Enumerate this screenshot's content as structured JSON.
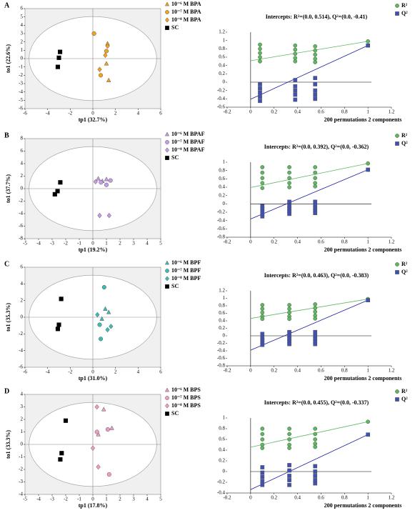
{
  "chart_data": [
    {
      "type": "scatter",
      "panel": "A",
      "xlabel": "tp1 (32.7%)",
      "ylabel": "to1 (22.6%)",
      "xlim": [
        -6,
        6
      ],
      "xticks": [
        -6,
        -4,
        -2,
        0,
        2,
        4,
        6
      ],
      "ylim": [
        -6,
        6
      ],
      "yticks": [
        -6,
        -5,
        -4,
        -3,
        -2,
        -1,
        0,
        1,
        2,
        3,
        4,
        5,
        6
      ],
      "ellipse": true,
      "legend": "right",
      "series": [
        {
          "name": "10⁻⁶ M BPA",
          "color": "#f5a21b",
          "marker": "triangle",
          "x": [
            1.3,
            1.2,
            1.4
          ],
          "y": [
            1.8,
            -0.6,
            -2.6
          ]
        },
        {
          "name": "10⁻⁷ M BPA",
          "color": "#f5a21b",
          "marker": "circle",
          "x": [
            0.1,
            1.2,
            0.7
          ],
          "y": [
            3.0,
            0.9,
            -2.0
          ]
        },
        {
          "name": "10⁻⁸ M BPA",
          "color": "#f5a21b",
          "marker": "diamond",
          "x": [
            1.3,
            0.6,
            1.1
          ],
          "y": [
            1.5,
            -1.3,
            0.4
          ]
        },
        {
          "name": "SC",
          "color": "#000000",
          "marker": "square",
          "x": [
            -2.9,
            -3.0,
            -3.1
          ],
          "y": [
            0.8,
            0.1,
            -1.0
          ]
        }
      ]
    },
    {
      "type": "scatter",
      "title": "Intercepts: R²=(0.0, 0.514), Q²=(0.0, -0.41)",
      "xlabel": "200 permutations 2 components",
      "xlim": [
        -0.2,
        1.2
      ],
      "xticks": [
        -0.2,
        0,
        0.2,
        0.4,
        0.6,
        0.8,
        1,
        1.2
      ],
      "ylim": [
        -0.6,
        1.2
      ],
      "yticks": [
        -0.6,
        -0.4,
        -0.2,
        0,
        0.2,
        0.4,
        0.6,
        0.8,
        1,
        1.2
      ],
      "legend": "upper right",
      "series": [
        {
          "name": "R²",
          "color": "#5cb85c",
          "marker": "circle",
          "x": [
            0.08,
            0.08,
            0.08,
            0.08,
            0.08,
            0.38,
            0.38,
            0.38,
            0.38,
            0.38,
            0.55,
            0.55,
            0.55,
            0.55,
            0.55,
            1
          ],
          "y": [
            0.9,
            0.8,
            0.7,
            0.6,
            0.5,
            0.88,
            0.78,
            0.68,
            0.58,
            0.5,
            0.86,
            0.76,
            0.66,
            0.56,
            0.48,
            0.98
          ]
        },
        {
          "name": "Q²",
          "color": "#3f51b5",
          "marker": "square",
          "x": [
            0.08,
            0.08,
            0.08,
            0.08,
            0.08,
            0.38,
            0.38,
            0.38,
            0.38,
            0.38,
            0.55,
            0.55,
            0.55,
            0.55,
            0.55,
            1
          ],
          "y": [
            -0.05,
            -0.15,
            -0.25,
            -0.35,
            -0.45,
            0.05,
            -0.1,
            -0.2,
            -0.3,
            -0.42,
            0.1,
            -0.05,
            -0.2,
            -0.3,
            -0.4,
            0.88
          ]
        }
      ],
      "lines": [
        {
          "color": "#5cb85c",
          "x": [
            0,
            1
          ],
          "y": [
            0.514,
            0.98
          ]
        },
        {
          "color": "#1a1aa8",
          "x": [
            0,
            1
          ],
          "y": [
            -0.41,
            0.88
          ]
        }
      ]
    },
    {
      "type": "scatter",
      "panel": "B",
      "xlabel": "tp1 (19.2%)",
      "ylabel": "to1 (37.7%)",
      "xlim": [
        -5,
        5
      ],
      "xticks": [
        -5,
        -4,
        -3,
        -2,
        -1,
        0,
        1,
        2,
        3,
        4,
        5
      ],
      "ylim": [
        -8,
        8
      ],
      "yticks": [
        -8,
        -6,
        -4,
        -2,
        0,
        2,
        4,
        6,
        8
      ],
      "ellipse": true,
      "legend": "right",
      "series": [
        {
          "name": "10⁻⁶ M BPAF",
          "color": "#c89be8",
          "marker": "triangle",
          "x": [
            0.4,
            0.7,
            1.0
          ],
          "y": [
            1.6,
            1.2,
            1.5
          ]
        },
        {
          "name": "10⁻⁷ M BPAF",
          "color": "#c89be8",
          "marker": "circle",
          "x": [
            0.6,
            1.0,
            1.3
          ],
          "y": [
            1.0,
            0.6,
            1.3
          ]
        },
        {
          "name": "10⁻⁸ M BPAF",
          "color": "#c89be8",
          "marker": "diamond",
          "x": [
            0.5,
            1.2,
            0.2
          ],
          "y": [
            -4.3,
            -4.3,
            1.1
          ]
        },
        {
          "name": "SC",
          "color": "#000000",
          "marker": "square",
          "x": [
            -2.4,
            -2.6,
            -2.8
          ],
          "y": [
            1.0,
            -0.4,
            -0.9
          ]
        }
      ]
    },
    {
      "type": "scatter",
      "title": "Intercepts: R²=(0.0, 0.392), Q²=(0.0, -0.362)",
      "xlabel": "200 permutations 2 components",
      "xlim": [
        -0.2,
        1.2
      ],
      "xticks": [
        -0.2,
        0,
        0.2,
        0.4,
        0.6,
        0.8,
        1,
        1.2
      ],
      "ylim": [
        -0.8,
        1
      ],
      "yticks": [
        -0.8,
        -0.6,
        -0.4,
        -0.2,
        0,
        0.2,
        0.4,
        0.6,
        0.8,
        1
      ],
      "legend": "upper right",
      "series": [
        {
          "name": "R²",
          "color": "#5cb85c",
          "marker": "circle",
          "x": [
            0.1,
            0.1,
            0.1,
            0.1,
            0.1,
            0.33,
            0.33,
            0.33,
            0.33,
            0.33,
            0.55,
            0.55,
            0.55,
            0.55,
            0.55,
            1
          ],
          "y": [
            0.88,
            0.75,
            0.62,
            0.5,
            0.38,
            0.88,
            0.75,
            0.62,
            0.5,
            0.4,
            0.88,
            0.75,
            0.62,
            0.5,
            0.42,
            0.97
          ]
        },
        {
          "name": "Q²",
          "color": "#3f51b5",
          "marker": "square",
          "x": [
            0.1,
            0.1,
            0.1,
            0.1,
            0.1,
            0.33,
            0.33,
            0.33,
            0.33,
            0.33,
            0.55,
            0.55,
            0.55,
            0.55,
            0.55,
            1
          ],
          "y": [
            -0.05,
            -0.12,
            -0.18,
            -0.24,
            -0.3,
            0.05,
            -0.05,
            -0.12,
            -0.18,
            -0.24,
            0.05,
            -0.03,
            -0.1,
            -0.16,
            -0.22,
            0.82
          ]
        }
      ],
      "lines": [
        {
          "color": "#5cb85c",
          "x": [
            0,
            1
          ],
          "y": [
            0.392,
            0.97
          ]
        },
        {
          "color": "#1a1aa8",
          "x": [
            0,
            1
          ],
          "y": [
            -0.362,
            0.82
          ]
        }
      ]
    },
    {
      "type": "scatter",
      "panel": "C",
      "xlabel": "tp1 (31.0%)",
      "ylabel": "to1 (35.3%)",
      "xlim": [
        -6,
        6
      ],
      "xticks": [
        -6,
        -4,
        -2,
        0,
        2,
        4,
        6
      ],
      "ylim": [
        -6,
        6
      ],
      "yticks": [
        -6,
        -4,
        -2,
        0,
        2,
        4,
        6
      ],
      "ellipse": true,
      "legend": "right",
      "series": [
        {
          "name": "10⁻⁶ M BPF",
          "color": "#3cbcb4",
          "marker": "triangle",
          "x": [
            1.1,
            1.4,
            0.8
          ],
          "y": [
            1.0,
            0.6,
            -0.2
          ]
        },
        {
          "name": "10⁻⁷ M BPF",
          "color": "#3cbcb4",
          "marker": "circle",
          "x": [
            1.0,
            0.6,
            0.7
          ],
          "y": [
            3.6,
            -0.9,
            -2.6
          ]
        },
        {
          "name": "10⁻⁸ M BPF",
          "color": "#3cbcb4",
          "marker": "diamond",
          "x": [
            1.6,
            1.3,
            0.4
          ],
          "y": [
            -1.1,
            -1.5,
            0.3
          ]
        },
        {
          "name": "SC",
          "color": "#000000",
          "marker": "square",
          "x": [
            -2.8,
            -3.0,
            -3.1
          ],
          "y": [
            2.2,
            -0.9,
            -1.4
          ]
        }
      ]
    },
    {
      "type": "scatter",
      "title": "Intercepts: R²=(0.0, 0.463), Q²=(0.0, -0.383)",
      "xlabel": "200 permutations 2 components",
      "xlim": [
        -0.2,
        1.2
      ],
      "xticks": [
        -0.2,
        0,
        0.2,
        0.4,
        0.6,
        0.8,
        1,
        1.2
      ],
      "ylim": [
        -0.8,
        1.2
      ],
      "yticks": [
        -0.8,
        -0.6,
        -0.4,
        -0.2,
        0,
        0.2,
        0.4,
        0.6,
        0.8,
        1,
        1.2
      ],
      "legend": "upper right",
      "series": [
        {
          "name": "R²",
          "color": "#5cb85c",
          "marker": "circle",
          "x": [
            0.1,
            0.1,
            0.1,
            0.1,
            0.1,
            0.33,
            0.33,
            0.33,
            0.33,
            0.33,
            0.55,
            0.55,
            0.55,
            0.55,
            0.55,
            1
          ],
          "y": [
            0.82,
            0.72,
            0.62,
            0.52,
            0.45,
            0.82,
            0.72,
            0.62,
            0.52,
            0.45,
            0.84,
            0.74,
            0.64,
            0.54,
            0.46,
            0.98
          ]
        },
        {
          "name": "Q²",
          "color": "#3f51b5",
          "marker": "square",
          "x": [
            0.1,
            0.1,
            0.1,
            0.1,
            0.1,
            0.33,
            0.33,
            0.33,
            0.33,
            0.33,
            0.55,
            0.55,
            0.55,
            0.55,
            0.55,
            1
          ],
          "y": [
            0.05,
            -0.05,
            -0.12,
            -0.18,
            -0.24,
            0.1,
            0,
            -0.08,
            -0.15,
            -0.22,
            0.1,
            0,
            -0.08,
            -0.15,
            -0.22,
            0.95
          ]
        }
      ],
      "lines": [
        {
          "color": "#5cb85c",
          "x": [
            0,
            1
          ],
          "y": [
            0.463,
            0.98
          ]
        },
        {
          "color": "#1a1aa8",
          "x": [
            0,
            1
          ],
          "y": [
            -0.383,
            0.95
          ]
        }
      ]
    },
    {
      "type": "scatter",
      "panel": "D",
      "xlabel": "tp1 (17.8%)",
      "ylabel": "to1 (33.3%)",
      "xlim": [
        -5,
        5
      ],
      "xticks": [
        -5,
        -4,
        -3,
        -2,
        -1,
        0,
        1,
        2,
        3,
        4,
        5
      ],
      "ylim": [
        -4,
        4
      ],
      "yticks": [
        -4,
        -3,
        -2,
        -1,
        0,
        1,
        2,
        3,
        4
      ],
      "ellipse": true,
      "legend": "right",
      "series": [
        {
          "name": "10⁻⁶ M BPS",
          "color": "#f29ac4",
          "marker": "triangle",
          "x": [
            0.8,
            1.4,
            0.4
          ],
          "y": [
            2.8,
            1.3,
            0.8
          ]
        },
        {
          "name": "10⁻⁷ M BPS",
          "color": "#f29ac4",
          "marker": "circle",
          "x": [
            0.3,
            1.1,
            1.2
          ],
          "y": [
            1.0,
            1.2,
            -2.4
          ]
        },
        {
          "name": "10⁻⁸ M BPS",
          "color": "#f29ac4",
          "marker": "diamond",
          "x": [
            0.3,
            0.0,
            0.4
          ],
          "y": [
            3.0,
            -0.3,
            -1.8
          ]
        },
        {
          "name": "SC",
          "color": "#000000",
          "marker": "square",
          "x": [
            -2.0,
            -2.3,
            -2.4
          ],
          "y": [
            1.9,
            -0.7,
            -1.2
          ]
        }
      ]
    },
    {
      "type": "scatter",
      "title": "Intercepts: R²=(0.0, 0.455), Q²=(0.0, -0.337)",
      "xlabel": "200 permutations 2 components",
      "xlim": [
        -0.2,
        1.2
      ],
      "xticks": [
        -0.2,
        0,
        0.2,
        0.4,
        0.6,
        0.8,
        1,
        1.2
      ],
      "ylim": [
        -0.4,
        1
      ],
      "yticks": [
        -0.4,
        -0.2,
        0,
        0.2,
        0.4,
        0.6,
        0.8,
        1
      ],
      "legend": "upper right",
      "series": [
        {
          "name": "R²",
          "color": "#5cb85c",
          "marker": "circle",
          "x": [
            0.1,
            0.1,
            0.1,
            0.1,
            0.1,
            0.33,
            0.33,
            0.33,
            0.33,
            0.33,
            0.55,
            0.55,
            0.55,
            0.55,
            0.55,
            1
          ],
          "y": [
            0.8,
            0.7,
            0.6,
            0.5,
            0.44,
            0.8,
            0.7,
            0.6,
            0.5,
            0.44,
            0.8,
            0.7,
            0.6,
            0.52,
            0.46,
            0.93
          ]
        },
        {
          "name": "Q²",
          "color": "#3f51b5",
          "marker": "square",
          "x": [
            0.1,
            0.1,
            0.1,
            0.1,
            0.1,
            0.33,
            0.33,
            0.33,
            0.33,
            0.33,
            0.55,
            0.55,
            0.55,
            0.55,
            0.55,
            1
          ],
          "y": [
            0.08,
            -0.02,
            -0.1,
            -0.18,
            -0.25,
            0.12,
            0.02,
            -0.08,
            -0.16,
            -0.25,
            0.1,
            0,
            -0.08,
            -0.16,
            -0.22,
            0.69
          ]
        }
      ],
      "lines": [
        {
          "color": "#5cb85c",
          "x": [
            0,
            1
          ],
          "y": [
            0.455,
            0.93
          ]
        },
        {
          "color": "#1a1aa8",
          "x": [
            0,
            1
          ],
          "y": [
            -0.337,
            0.69
          ]
        }
      ]
    }
  ]
}
